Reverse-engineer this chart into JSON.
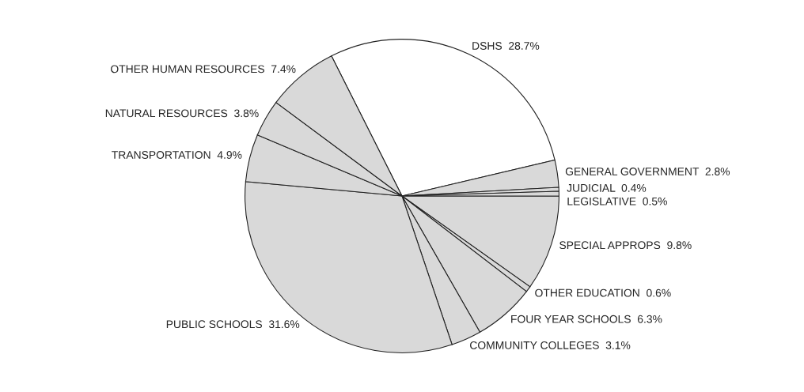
{
  "chart_data": {
    "type": "pie",
    "categories": [
      "DSHS",
      "GENERAL GOVERNMENT",
      "JUDICIAL",
      "LEGISLATIVE",
      "SPECIAL APPROPS",
      "OTHER EDUCATION",
      "FOUR YEAR SCHOOLS",
      "COMMUNITY COLLEGES",
      "PUBLIC SCHOOLS",
      "TRANSPORTATION",
      "NATURAL RESOURCES",
      "OTHER HUMAN RESOURCES"
    ],
    "values": [
      28.7,
      2.8,
      0.4,
      0.5,
      9.8,
      0.6,
      6.3,
      3.1,
      31.6,
      4.9,
      3.8,
      7.4
    ],
    "colors": [
      "#ffffff",
      "#d9d9d9",
      "#d9d9d9",
      "#d9d9d9",
      "#d9d9d9",
      "#d9d9d9",
      "#d9d9d9",
      "#d9d9d9",
      "#d9d9d9",
      "#d9d9d9",
      "#d9d9d9",
      "#d9d9d9"
    ],
    "value_labels": [
      "28.7%",
      "2.8%",
      "0.4%",
      "0.5%",
      "9.8%",
      "0.6%",
      "6.3%",
      "3.1%",
      "31.6%",
      "4.9%",
      "3.8%",
      "7.4%"
    ]
  }
}
